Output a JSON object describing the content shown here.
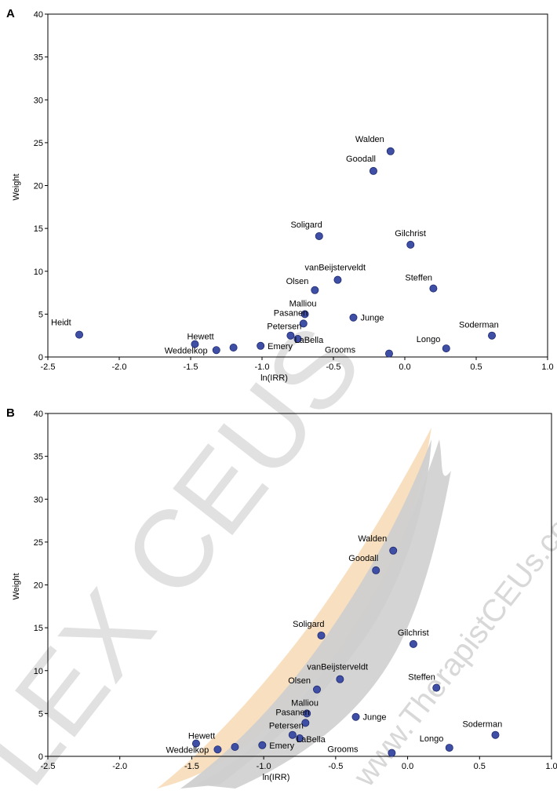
{
  "chart_data": [
    {
      "type": "scatter",
      "panel_label": "A",
      "xlabel": "ln(IRR)",
      "ylabel": "Weight",
      "xlim": [
        -2.5,
        1.0
      ],
      "ylim": [
        0,
        40
      ],
      "x_ticks": [
        -2.5,
        -2.0,
        -1.5,
        -1.0,
        -0.5,
        0.0,
        0.5,
        1.0
      ],
      "x_tick_labels": [
        "-2.5",
        "-2.0",
        "-1.5",
        "-1.0",
        "-0.5",
        "0.0",
        "0.5",
        "1.0"
      ],
      "y_ticks": [
        0,
        5,
        10,
        15,
        20,
        25,
        30,
        35,
        40
      ],
      "y_tick_labels": [
        "0",
        "5",
        "10",
        "15",
        "20",
        "25",
        "30",
        "35",
        "40"
      ],
      "marker_color": "#3f4fa6",
      "points": [
        {
          "label": "Walden",
          "x": -0.1,
          "y": 24.0
        },
        {
          "label": "Goodall",
          "x": -0.22,
          "y": 21.7
        },
        {
          "label": "Soligard",
          "x": -0.6,
          "y": 14.1
        },
        {
          "label": "Gilchrist",
          "x": 0.04,
          "y": 13.1
        },
        {
          "label": "vanBeijsterveldt",
          "x": -0.47,
          "y": 9.0
        },
        {
          "label": "Olsen",
          "x": -0.63,
          "y": 7.8
        },
        {
          "label": "Steffen",
          "x": 0.2,
          "y": 8.0
        },
        {
          "label": "Malliou",
          "x": -0.7,
          "y": 5.0
        },
        {
          "label": "Pasanen",
          "x": -0.71,
          "y": 3.9
        },
        {
          "label": "Junge",
          "x": -0.36,
          "y": 4.6
        },
        {
          "label": "Petersen",
          "x": -0.8,
          "y": 2.5
        },
        {
          "label": "LaBella",
          "x": -0.75,
          "y": 2.1
        },
        {
          "label": "Heidt",
          "x": -2.28,
          "y": 2.6
        },
        {
          "label": "Hewett",
          "x": -1.47,
          "y": 1.5
        },
        {
          "label": "",
          "x": -1.2,
          "y": 1.1
        },
        {
          "label": "Weddelkop",
          "x": -1.32,
          "y": 0.8
        },
        {
          "label": "Emery",
          "x": -1.01,
          "y": 1.3
        },
        {
          "label": "Grooms",
          "x": -0.11,
          "y": 0.4
        },
        {
          "label": "Longo",
          "x": 0.29,
          "y": 1.0
        },
        {
          "label": "Soderman",
          "x": 0.61,
          "y": 2.5
        }
      ]
    },
    {
      "type": "scatter",
      "panel_label": "B",
      "xlabel": "ln(IRR)",
      "ylabel": "Weight",
      "xlim": [
        -2.5,
        1.0
      ],
      "ylim": [
        0,
        40
      ],
      "x_ticks": [
        -2.5,
        -2.0,
        -1.5,
        -1.0,
        -0.5,
        0.0,
        0.5,
        1.0
      ],
      "x_tick_labels": [
        "-2.5",
        "-2.0",
        "-1.5",
        "-1.0",
        "-0.5",
        "0.0",
        "0.5",
        "1.0"
      ],
      "y_ticks": [
        0,
        5,
        10,
        15,
        20,
        25,
        30,
        35,
        40
      ],
      "y_tick_labels": [
        "0",
        "5",
        "10",
        "15",
        "20",
        "25",
        "30",
        "35",
        "40"
      ],
      "marker_color": "#3f4fa6",
      "points": [
        {
          "label": "Walden",
          "x": -0.1,
          "y": 24.0
        },
        {
          "label": "Goodall",
          "x": -0.22,
          "y": 21.7
        },
        {
          "label": "Soligard",
          "x": -0.6,
          "y": 14.1
        },
        {
          "label": "Gilchrist",
          "x": 0.04,
          "y": 13.1
        },
        {
          "label": "vanBeijsterveldt",
          "x": -0.47,
          "y": 9.0
        },
        {
          "label": "Olsen",
          "x": -0.63,
          "y": 7.8
        },
        {
          "label": "Steffen",
          "x": 0.2,
          "y": 8.0
        },
        {
          "label": "Malliou",
          "x": -0.7,
          "y": 5.0
        },
        {
          "label": "Pasanen",
          "x": -0.71,
          "y": 3.9
        },
        {
          "label": "Junge",
          "x": -0.36,
          "y": 4.6
        },
        {
          "label": "Petersen",
          "x": -0.8,
          "y": 2.5
        },
        {
          "label": "LaBella",
          "x": -0.75,
          "y": 2.1
        },
        {
          "label": "Hewett",
          "x": -1.47,
          "y": 1.5
        },
        {
          "label": "",
          "x": -1.2,
          "y": 1.1
        },
        {
          "label": "Weddelkop",
          "x": -1.32,
          "y": 0.8
        },
        {
          "label": "Emery",
          "x": -1.01,
          "y": 1.3
        },
        {
          "label": "Grooms",
          "x": -0.11,
          "y": 0.4
        },
        {
          "label": "Longo",
          "x": 0.29,
          "y": 1.0
        },
        {
          "label": "Soderman",
          "x": 0.61,
          "y": 2.5
        }
      ]
    }
  ],
  "watermark": {
    "text_large": "LEX CEUS",
    "text_small": "www.TherapistCEUs.com",
    "color": "#c8c8c8",
    "feather_colors": [
      "#c8c8c8",
      "#f7dcb8"
    ]
  }
}
